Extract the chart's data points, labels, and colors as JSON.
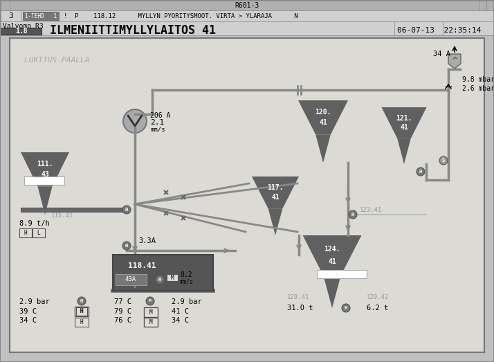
{
  "bg_color": "#c8c8c8",
  "panel_bg": "#d8d8d8",
  "inner_bg": "#e0ddd8",
  "title_bar": "R601-3",
  "subtitle_row": "!  P    118.12       MYLLYN PYORITYSMOOT. VIRTA > YLARAJA       N",
  "valvomo": "Valvomo R3",
  "value_display": "1.8",
  "main_title": "ILMENIITTIMYLLYLAITOS 41",
  "datetime": "06-07-13  22:35:14",
  "lukitus": "LUKITUS PAALLA",
  "pipe_color": "#888888",
  "hopper_color": "#666666",
  "mill_color": "#555555",
  "circle_color": "#777777",
  "text_dark": "#000000",
  "text_mid": "#999999",
  "white": "#ffffff",
  "line_color": "#888888"
}
